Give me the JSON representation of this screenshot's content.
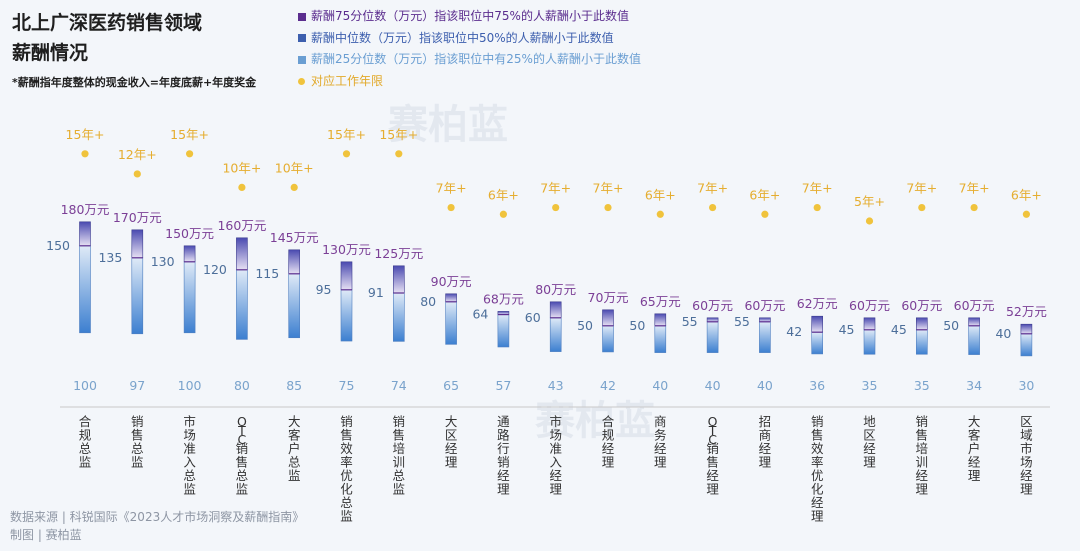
{
  "title_lines": [
    "北上广深医药销售领域",
    "薪酬情况"
  ],
  "subtitle": "*薪酬指年度整体的现金收入=年度底薪+年度奖金",
  "legend": [
    {
      "label": "薪酬75分位数（万元）指该职位中75%的人薪酬小于此数值",
      "color": "#5b2d8e",
      "text_color": "#5b2d8e",
      "marker": "square"
    },
    {
      "label": "薪酬中位数（万元）指该职位中50%的人薪酬小于此数值",
      "color": "#3d5fae",
      "text_color": "#3d5fae",
      "marker": "square"
    },
    {
      "label": "薪酬25分位数（万元）指该职位中有25%的人薪酬小于此数值",
      "color": "#6a9ed2",
      "text_color": "#6a9ed2",
      "marker": "square"
    },
    {
      "label": "对应工作年限",
      "color": "#f0c33c",
      "text_color": "#e2a92a",
      "marker": "dot"
    }
  ],
  "watermark": "赛柏蓝",
  "source_lines": [
    "数据来源 | 科锐国际《2023人才市场洞察及薪酬指南》",
    "制图 | 赛柏蓝"
  ],
  "colors": {
    "p75": "#7b3f96",
    "median_label": "#4d6f9a",
    "p25": "#7aa3cc",
    "years": "#f0c33c",
    "years_text": "#e5ad2f",
    "axis": "#c8c8c8",
    "category": "#333333"
  },
  "chart_data": {
    "type": "bar",
    "subtype": "range-bar with dots",
    "categories": [
      "合规总监",
      "销售总监",
      "市场准入总监",
      "OTC销售总监",
      "大客户总监",
      "销售效率优化总监",
      "销售培训总监",
      "大区经理",
      "通路行销经理",
      "市场准入经理",
      "合规经理",
      "商务经理",
      "OTC销售经理",
      "招商经理",
      "销售效率优化经理",
      "地区经理",
      "销售培训经理",
      "大客户经理",
      "区域市场经理"
    ],
    "series": [
      {
        "name": "薪酬75分位数（万元）",
        "values": [
          180,
          170,
          150,
          160,
          145,
          130,
          125,
          90,
          68,
          80,
          70,
          65,
          60,
          60,
          62,
          60,
          60,
          60,
          52
        ],
        "labels": [
          "180万元",
          "170万元",
          "150万元",
          "160万元",
          "145万元",
          "130万元",
          "125万元",
          "90万元",
          "68万元",
          "80万元",
          "70万元",
          "65万元",
          "60万元",
          "60万元",
          "62万元",
          "60万元",
          "60万元",
          "60万元",
          "52万元"
        ]
      },
      {
        "name": "薪酬中位数（万元）",
        "values": [
          150,
          135,
          130,
          120,
          115,
          95,
          91,
          80,
          64,
          60,
          50,
          50,
          55,
          55,
          42,
          45,
          45,
          50,
          40
        ]
      },
      {
        "name": "薪酬25分位数（万元）",
        "values": [
          100,
          97,
          100,
          80,
          85,
          75,
          74,
          65,
          57,
          43,
          42,
          40,
          40,
          40,
          36,
          35,
          35,
          34,
          30
        ]
      },
      {
        "name": "对应工作年限",
        "values": [
          15,
          12,
          15,
          10,
          10,
          15,
          15,
          7,
          6,
          7,
          7,
          6,
          7,
          6,
          7,
          5,
          7,
          7,
          6
        ],
        "labels": [
          "15年+",
          "12年+",
          "15年+",
          "10年+",
          "10年+",
          "15年+",
          "15年+",
          "7年+",
          "6年+",
          "7年+",
          "7年+",
          "6年+",
          "7年+",
          "6年+",
          "7年+",
          "5年+",
          "7年+",
          "7年+",
          "6年+"
        ]
      }
    ]
  }
}
